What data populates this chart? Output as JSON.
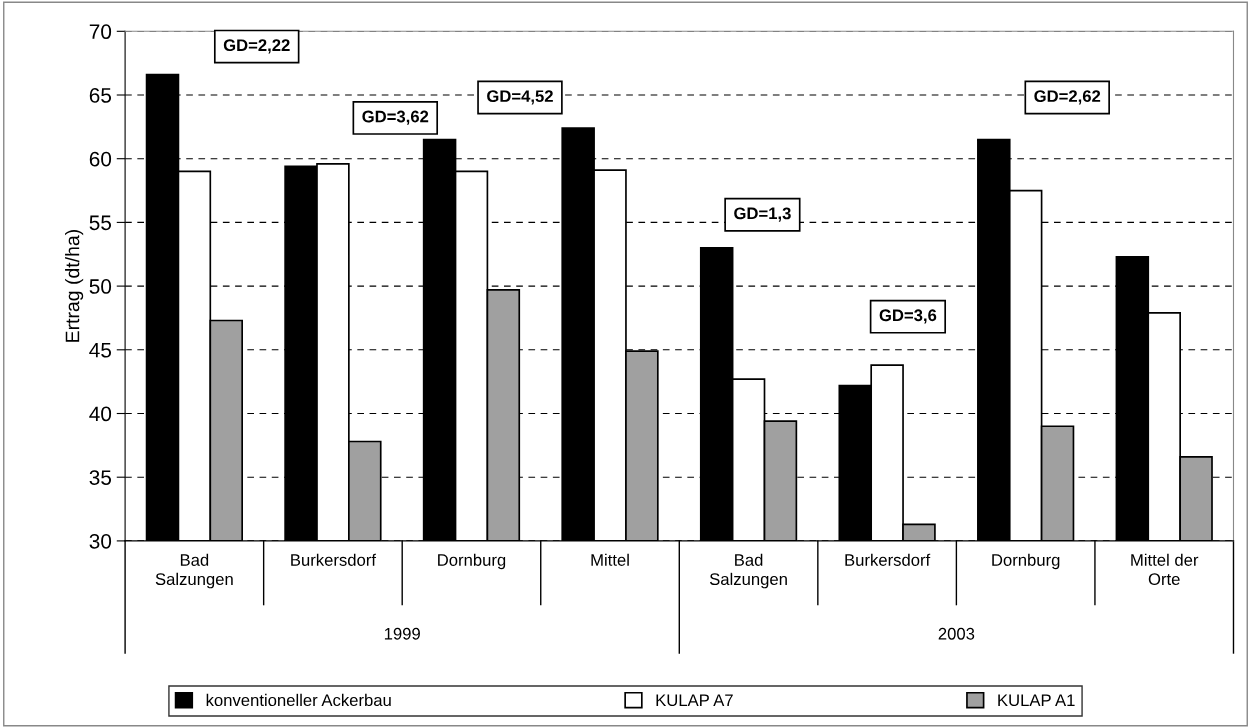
{
  "chart_data": {
    "type": "bar",
    "ylabel": "Ertrag (dt/ha)",
    "categories": [
      "Bad\nSalzungen",
      "Burkersdorf",
      "Dornburg",
      "Mittel",
      "Bad\nSalzungen",
      "Burkersdorf",
      "Dornburg",
      "Mittel der\nOrte"
    ],
    "series": [
      {
        "name": "konventioneller Ackerbau",
        "color": "#000000",
        "values": [
          66.6,
          59.4,
          61.5,
          62.4,
          53.0,
          42.2,
          61.5,
          52.3
        ]
      },
      {
        "name": "KULAP A7",
        "color": "#ffffff",
        "values": [
          59.0,
          59.6,
          59.0,
          59.1,
          42.7,
          43.8,
          57.5,
          47.9
        ]
      },
      {
        "name": "KULAP A1",
        "color": "#a0a0a0",
        "values": [
          47.3,
          37.8,
          49.7,
          44.9,
          39.4,
          31.3,
          39.0,
          36.6
        ]
      }
    ],
    "ylim": [
      30,
      70
    ],
    "yticks": [
      30,
      35,
      40,
      45,
      50,
      55,
      60,
      65,
      70
    ],
    "grid": "y",
    "legend": "bottom",
    "annotations": [
      "GD=2,22",
      "GD=3,62",
      "GD=4,52",
      "GD=1,3",
      "GD=3,6",
      "GD=2,62",
      "1999",
      "2003"
    ]
  }
}
